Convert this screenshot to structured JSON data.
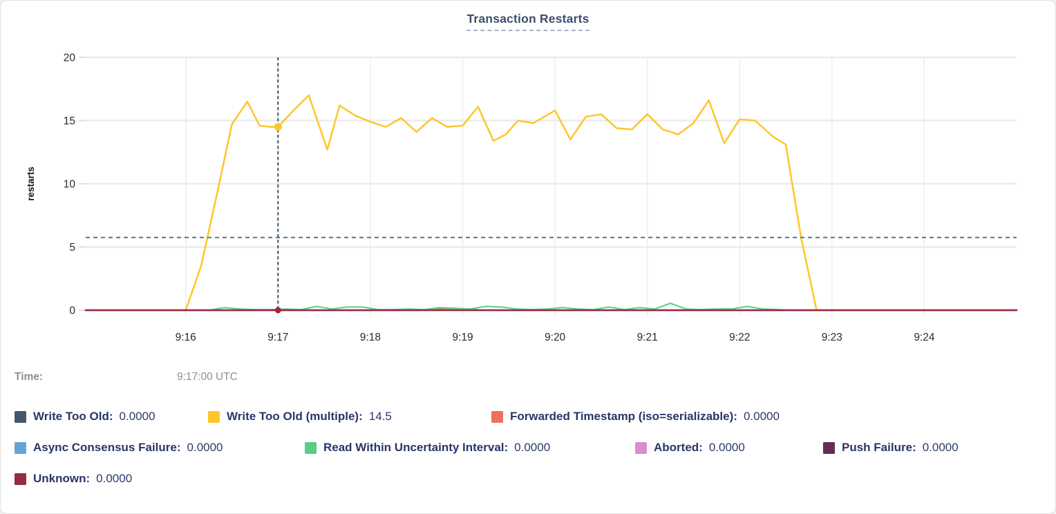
{
  "title": "Transaction Restarts",
  "hover": {
    "time_label": "Time:",
    "time_value": "9:17:00 UTC"
  },
  "colors": {
    "title": "#3d4f6e",
    "title_underline": "#a6b4cb",
    "gridline": "#ececec",
    "crosshair_vertical": "#3a566f",
    "crosshair_horizontal": "#56728d",
    "axis_text": "#2a2a2a",
    "legend_text": "#29356b",
    "time_text": "#8e8e8e"
  },
  "legend": {
    "rows": [
      [
        {
          "label": "Write Too Old:",
          "value": "0.0000",
          "color": "#45566F",
          "series": "write-too-old"
        },
        {
          "label": "Write Too Old (multiple):",
          "value": "14.5",
          "color": "#FFC529",
          "series": "write-too-old-multiple"
        },
        {
          "label": "Forwarded Timestamp (iso=serializable):",
          "value": "0.0000",
          "color": "#F0705F",
          "series": "forwarded-timestamp"
        }
      ],
      [
        {
          "label": "Async Consensus Failure:",
          "value": "0.0000",
          "color": "#64A5D9",
          "series": "async-consensus-failure"
        },
        {
          "label": "Read Within Uncertainty Interval:",
          "value": "0.0000",
          "color": "#57CE87",
          "series": "read-within-uncertainty-interval"
        },
        {
          "label": "Aborted:",
          "value": "0.0000",
          "color": "#D98ECF",
          "series": "aborted"
        },
        {
          "label": "Push Failure:",
          "value": "0.0000",
          "color": "#632D58",
          "series": "push-failure"
        }
      ],
      [
        {
          "label": "Unknown:",
          "value": "0.0000",
          "color": "#962B45",
          "series": "unknown"
        }
      ]
    ]
  },
  "chart_data": {
    "type": "line",
    "title": "Transaction Restarts",
    "ylabel": "restarts",
    "xlabel": "",
    "x_unit": "seconds-since-9:00-UTC",
    "x_axis": {
      "domain": [
        895,
        1500
      ],
      "ticks": [
        {
          "t": 960,
          "label": "9:16"
        },
        {
          "t": 1020,
          "label": "9:17"
        },
        {
          "t": 1080,
          "label": "9:18"
        },
        {
          "t": 1140,
          "label": "9:19"
        },
        {
          "t": 1200,
          "label": "9:20"
        },
        {
          "t": 1260,
          "label": "9:21"
        },
        {
          "t": 1320,
          "label": "9:22"
        },
        {
          "t": 1380,
          "label": "9:23"
        },
        {
          "t": 1440,
          "label": "9:24"
        }
      ]
    },
    "y_axis": {
      "range": [
        0,
        20
      ],
      "ticks": [
        0,
        5,
        10,
        15,
        20
      ]
    },
    "series": [
      {
        "name": "Write Too Old",
        "color": "#45566F",
        "width": 2,
        "points": [
          [
            895,
            0
          ],
          [
            1500,
            0
          ]
        ]
      },
      {
        "name": "Write Too Old (multiple)",
        "color": "#FFC529",
        "width": 2.5,
        "points": [
          [
            895,
            0
          ],
          [
            960,
            0
          ],
          [
            970,
            3.5
          ],
          [
            980,
            9
          ],
          [
            990,
            14.7
          ],
          [
            1000,
            16.5
          ],
          [
            1008,
            14.6
          ],
          [
            1015,
            14.5
          ],
          [
            1020,
            14.5
          ],
          [
            1030,
            15.8
          ],
          [
            1040,
            17
          ],
          [
            1052,
            12.7
          ],
          [
            1060,
            16.2
          ],
          [
            1070,
            15.4
          ],
          [
            1080,
            14.9
          ],
          [
            1090,
            14.5
          ],
          [
            1100,
            15.2
          ],
          [
            1110,
            14.1
          ],
          [
            1120,
            15.2
          ],
          [
            1130,
            14.5
          ],
          [
            1140,
            14.6
          ],
          [
            1150,
            16.1
          ],
          [
            1160,
            13.4
          ],
          [
            1168,
            13.9
          ],
          [
            1176,
            15
          ],
          [
            1186,
            14.8
          ],
          [
            1200,
            15.8
          ],
          [
            1210,
            13.5
          ],
          [
            1220,
            15.3
          ],
          [
            1230,
            15.5
          ],
          [
            1240,
            14.4
          ],
          [
            1250,
            14.3
          ],
          [
            1260,
            15.5
          ],
          [
            1270,
            14.3
          ],
          [
            1280,
            13.9
          ],
          [
            1290,
            14.8
          ],
          [
            1300,
            16.6
          ],
          [
            1310,
            13.2
          ],
          [
            1320,
            15.1
          ],
          [
            1330,
            15
          ],
          [
            1342,
            13.7
          ],
          [
            1350,
            13.1
          ],
          [
            1360,
            5.7
          ],
          [
            1370,
            0
          ],
          [
            1500,
            0
          ]
        ]
      },
      {
        "name": "Forwarded Timestamp (iso=serializable)",
        "color": "#F0705F",
        "width": 2.5,
        "points": [
          [
            895,
            0
          ],
          [
            1112,
            0
          ],
          [
            1122,
            0.1
          ],
          [
            1132,
            0.15
          ],
          [
            1142,
            0.1
          ],
          [
            1152,
            0
          ],
          [
            1500,
            0
          ]
        ]
      },
      {
        "name": "Async Consensus Failure",
        "color": "#64A5D9",
        "width": 2,
        "points": [
          [
            895,
            0
          ],
          [
            1500,
            0
          ]
        ]
      },
      {
        "name": "Read Within Uncertainty Interval",
        "color": "#57CE87",
        "width": 2,
        "points": [
          [
            895,
            0
          ],
          [
            975,
            0
          ],
          [
            985,
            0.2
          ],
          [
            995,
            0.1
          ],
          [
            1005,
            0.05
          ],
          [
            1015,
            0.05
          ],
          [
            1025,
            0.1
          ],
          [
            1035,
            0.05
          ],
          [
            1045,
            0.3
          ],
          [
            1055,
            0.1
          ],
          [
            1065,
            0.25
          ],
          [
            1075,
            0.25
          ],
          [
            1085,
            0.05
          ],
          [
            1095,
            0.05
          ],
          [
            1105,
            0.1
          ],
          [
            1115,
            0.05
          ],
          [
            1125,
            0.2
          ],
          [
            1135,
            0.15
          ],
          [
            1145,
            0.1
          ],
          [
            1155,
            0.3
          ],
          [
            1165,
            0.25
          ],
          [
            1175,
            0.1
          ],
          [
            1185,
            0.05
          ],
          [
            1195,
            0.1
          ],
          [
            1205,
            0.2
          ],
          [
            1215,
            0.1
          ],
          [
            1225,
            0.05
          ],
          [
            1235,
            0.25
          ],
          [
            1245,
            0.05
          ],
          [
            1255,
            0.2
          ],
          [
            1265,
            0.1
          ],
          [
            1275,
            0.55
          ],
          [
            1285,
            0.1
          ],
          [
            1295,
            0.05
          ],
          [
            1305,
            0.1
          ],
          [
            1315,
            0.1
          ],
          [
            1325,
            0.3
          ],
          [
            1335,
            0.1
          ],
          [
            1345,
            0.05
          ],
          [
            1355,
            0
          ],
          [
            1500,
            0
          ]
        ]
      },
      {
        "name": "Aborted",
        "color": "#D98ECF",
        "width": 2,
        "points": [
          [
            895,
            0
          ],
          [
            1500,
            0
          ]
        ]
      },
      {
        "name": "Push Failure",
        "color": "#632D58",
        "width": 2,
        "points": [
          [
            895,
            0
          ],
          [
            1500,
            0
          ]
        ]
      },
      {
        "name": "Unknown",
        "color": "#962B45",
        "width": 2.5,
        "points": [
          [
            895,
            0
          ],
          [
            1500,
            0
          ]
        ]
      }
    ],
    "crosshair": {
      "t": 1020,
      "hovered_series": "Write Too Old (multiple)",
      "hovered_value": 14.5,
      "zero_series_value": 0,
      "mouse_y_value": 5.75
    },
    "legend_position": "bottom",
    "grid": true
  }
}
